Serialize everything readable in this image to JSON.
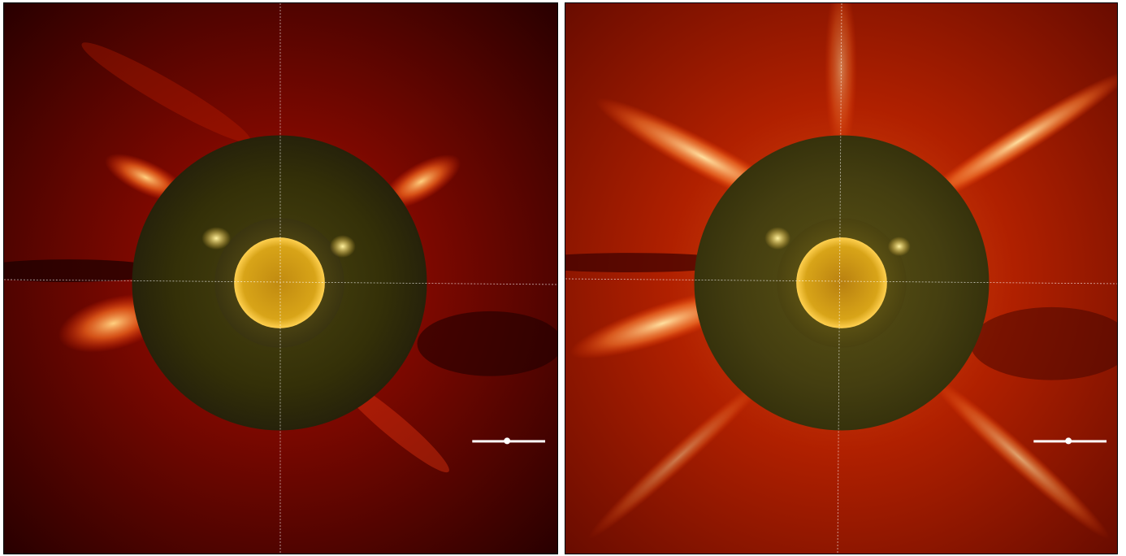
{
  "panels": [
    {
      "id": "left",
      "description_colors": {
        "corona_background": "#3a0000",
        "corona_mid": "#8a0a00",
        "streamer": "#ff9a30",
        "disk_overlay": "#2e2a08",
        "sun": "#c89a10"
      }
    },
    {
      "id": "right",
      "description_colors": {
        "corona_background": "#5a0a00",
        "corona_mid": "#b02000",
        "streamer": "#ffb060",
        "disk_overlay": "#3a360c",
        "sun": "#c89a10"
      }
    }
  ]
}
